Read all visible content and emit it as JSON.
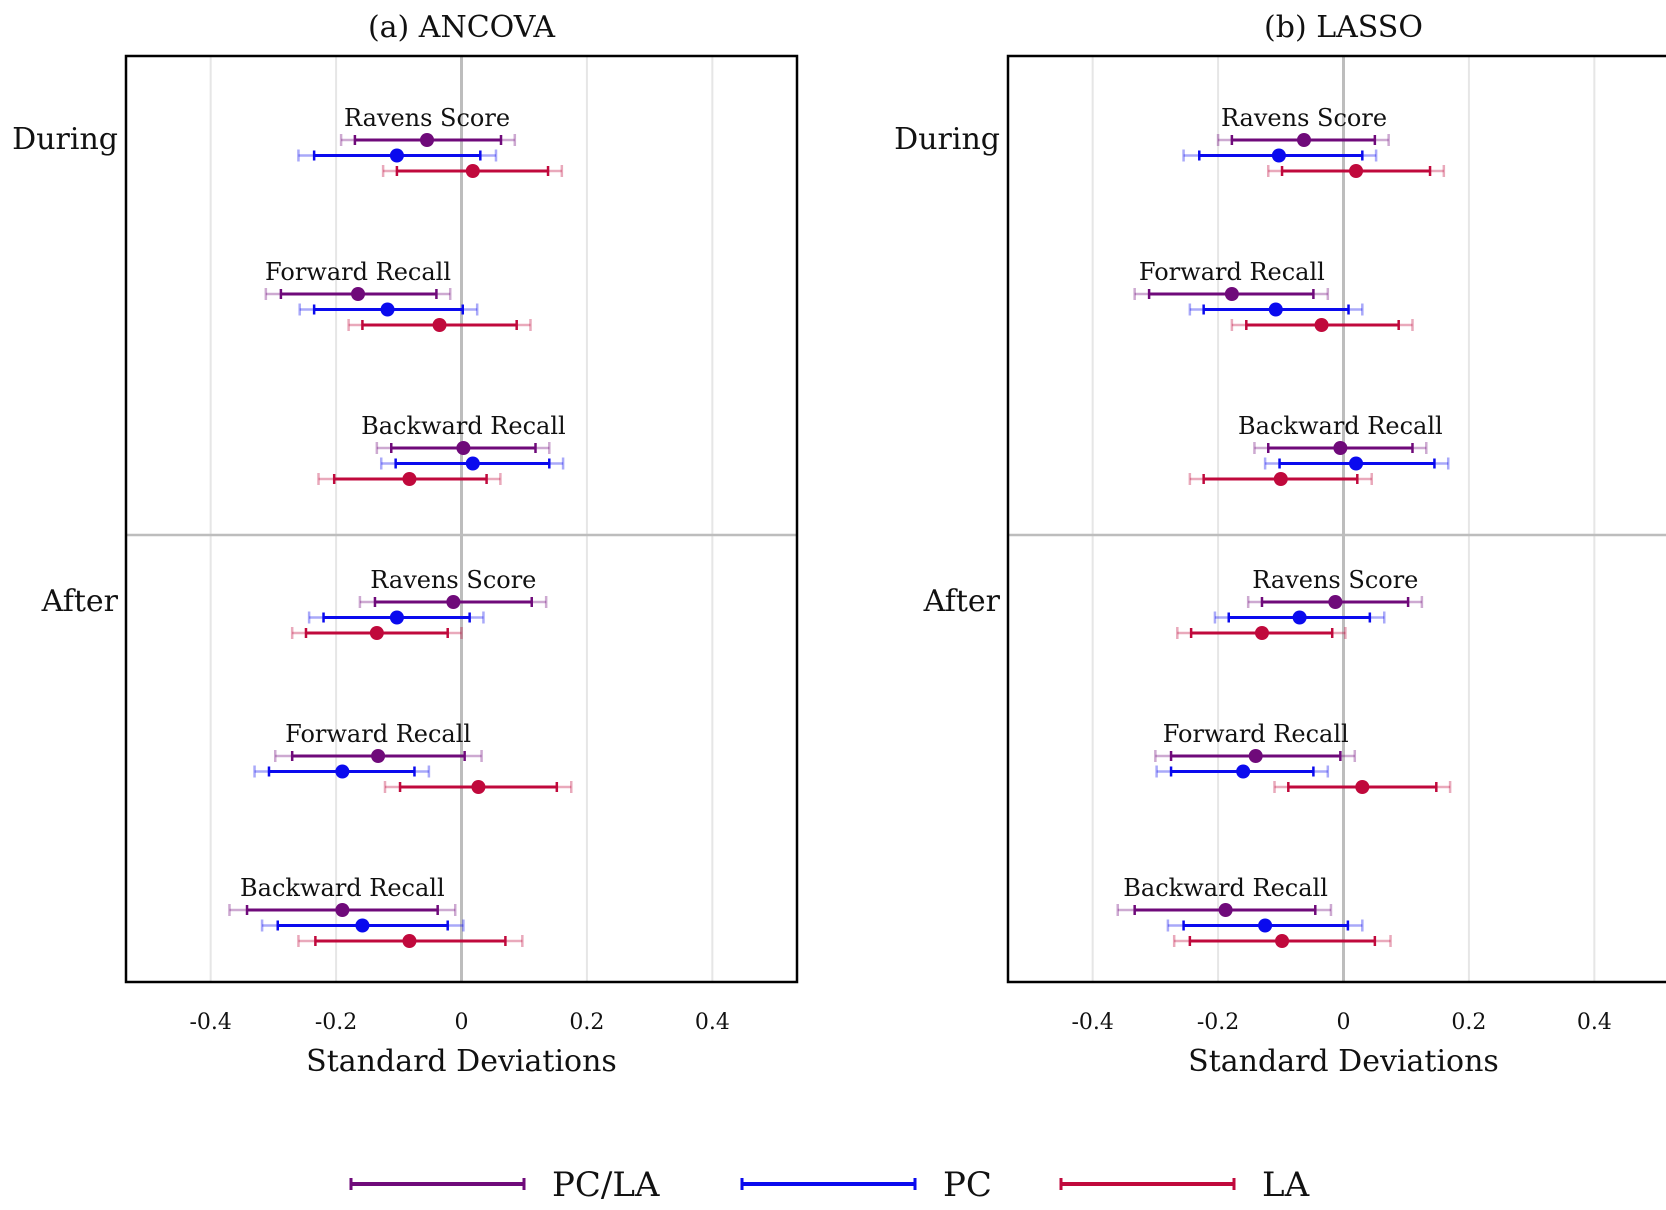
{
  "figure": {
    "legend": [
      {
        "name": "PC/LA",
        "color": "#6f0a7a"
      },
      {
        "name": "PC",
        "color": "#0a0aee"
      },
      {
        "name": "LA",
        "color": "#c0093c"
      }
    ],
    "legend_placement": "bottom-center"
  },
  "chart_data": [
    {
      "type": "coefficient-plot",
      "title": "(a) ANCOVA",
      "xlabel": "Standard Deviations",
      "xlim": [
        -0.535,
        0.535
      ],
      "xticks": [
        -0.4,
        -0.2,
        0,
        0.2,
        0.4
      ],
      "xtick_labels": [
        "-0.4",
        "-0.2",
        "0",
        "0.2",
        "0.4"
      ],
      "grid": true,
      "series_names": [
        "PC/LA",
        "PC",
        "LA"
      ],
      "groups": [
        {
          "period": "During",
          "outcomes": [
            {
              "label": "Ravens Score",
              "estimates": [
                {
                  "series": "PC/LA",
                  "est": -0.055,
                  "ci90": [
                    -0.17,
                    0.063
                  ],
                  "ci95": [
                    -0.192,
                    0.085
                  ]
                },
                {
                  "series": "PC",
                  "est": -0.103,
                  "ci90": [
                    -0.235,
                    0.03
                  ],
                  "ci95": [
                    -0.26,
                    0.055
                  ]
                },
                {
                  "series": "LA",
                  "est": 0.018,
                  "ci90": [
                    -0.103,
                    0.138
                  ],
                  "ci95": [
                    -0.125,
                    0.16
                  ]
                }
              ]
            },
            {
              "label": "Forward Recall",
              "estimates": [
                {
                  "series": "PC/LA",
                  "est": -0.165,
                  "ci90": [
                    -0.288,
                    -0.04
                  ],
                  "ci95": [
                    -0.312,
                    -0.018
                  ]
                },
                {
                  "series": "PC",
                  "est": -0.118,
                  "ci90": [
                    -0.235,
                    0.002
                  ],
                  "ci95": [
                    -0.258,
                    0.025
                  ]
                },
                {
                  "series": "LA",
                  "est": -0.035,
                  "ci90": [
                    -0.158,
                    0.088
                  ],
                  "ci95": [
                    -0.18,
                    0.11
                  ]
                }
              ]
            },
            {
              "label": "Backward Recall",
              "estimates": [
                {
                  "series": "PC/LA",
                  "est": 0.003,
                  "ci90": [
                    -0.112,
                    0.118
                  ],
                  "ci95": [
                    -0.135,
                    0.14
                  ]
                },
                {
                  "series": "PC",
                  "est": 0.018,
                  "ci90": [
                    -0.105,
                    0.14
                  ],
                  "ci95": [
                    -0.128,
                    0.162
                  ]
                },
                {
                  "series": "LA",
                  "est": -0.083,
                  "ci90": [
                    -0.203,
                    0.04
                  ],
                  "ci95": [
                    -0.228,
                    0.062
                  ]
                }
              ]
            }
          ]
        },
        {
          "period": "After",
          "outcomes": [
            {
              "label": "Ravens Score",
              "estimates": [
                {
                  "series": "PC/LA",
                  "est": -0.013,
                  "ci90": [
                    -0.138,
                    0.112
                  ],
                  "ci95": [
                    -0.162,
                    0.135
                  ]
                },
                {
                  "series": "PC",
                  "est": -0.103,
                  "ci90": [
                    -0.22,
                    0.013
                  ],
                  "ci95": [
                    -0.243,
                    0.035
                  ]
                },
                {
                  "series": "LA",
                  "est": -0.135,
                  "ci90": [
                    -0.248,
                    -0.022
                  ],
                  "ci95": [
                    -0.27,
                    0
                  ]
                }
              ]
            },
            {
              "label": "Forward Recall",
              "estimates": [
                {
                  "series": "PC/LA",
                  "est": -0.133,
                  "ci90": [
                    -0.27,
                    0.005
                  ],
                  "ci95": [
                    -0.297,
                    0.032
                  ]
                },
                {
                  "series": "PC",
                  "est": -0.19,
                  "ci90": [
                    -0.307,
                    -0.075
                  ],
                  "ci95": [
                    -0.33,
                    -0.052
                  ]
                },
                {
                  "series": "LA",
                  "est": 0.027,
                  "ci90": [
                    -0.098,
                    0.152
                  ],
                  "ci95": [
                    -0.122,
                    0.175
                  ]
                }
              ]
            },
            {
              "label": "Backward Recall",
              "estimates": [
                {
                  "series": "PC/LA",
                  "est": -0.19,
                  "ci90": [
                    -0.342,
                    -0.038
                  ],
                  "ci95": [
                    -0.37,
                    -0.01
                  ]
                },
                {
                  "series": "PC",
                  "est": -0.158,
                  "ci90": [
                    -0.293,
                    -0.022
                  ],
                  "ci95": [
                    -0.318,
                    0.003
                  ]
                },
                {
                  "series": "LA",
                  "est": -0.083,
                  "ci90": [
                    -0.233,
                    0.07
                  ],
                  "ci95": [
                    -0.26,
                    0.097
                  ]
                }
              ]
            }
          ]
        }
      ]
    },
    {
      "type": "coefficient-plot",
      "title": "(b) LASSO",
      "xlabel": "Standard Deviations",
      "xlim": [
        -0.535,
        0.535
      ],
      "xticks": [
        -0.4,
        -0.2,
        0,
        0.2,
        0.4
      ],
      "xtick_labels": [
        "-0.4",
        "-0.2",
        "0",
        "0.2",
        "0.4"
      ],
      "grid": true,
      "series_names": [
        "PC/LA",
        "PC",
        "LA"
      ],
      "groups": [
        {
          "period": "During",
          "outcomes": [
            {
              "label": "Ravens Score",
              "estimates": [
                {
                  "series": "PC/LA",
                  "est": -0.063,
                  "ci90": [
                    -0.178,
                    0.05
                  ],
                  "ci95": [
                    -0.2,
                    0.072
                  ]
                },
                {
                  "series": "PC",
                  "est": -0.103,
                  "ci90": [
                    -0.23,
                    0.03
                  ],
                  "ci95": [
                    -0.255,
                    0.052
                  ]
                },
                {
                  "series": "LA",
                  "est": 0.02,
                  "ci90": [
                    -0.098,
                    0.138
                  ],
                  "ci95": [
                    -0.12,
                    0.16
                  ]
                }
              ]
            },
            {
              "label": "Forward Recall",
              "estimates": [
                {
                  "series": "PC/LA",
                  "est": -0.178,
                  "ci90": [
                    -0.31,
                    -0.048
                  ],
                  "ci95": [
                    -0.333,
                    -0.025
                  ]
                },
                {
                  "series": "PC",
                  "est": -0.108,
                  "ci90": [
                    -0.223,
                    0.008
                  ],
                  "ci95": [
                    -0.245,
                    0.03
                  ]
                },
                {
                  "series": "LA",
                  "est": -0.035,
                  "ci90": [
                    -0.155,
                    0.088
                  ],
                  "ci95": [
                    -0.178,
                    0.11
                  ]
                }
              ]
            },
            {
              "label": "Backward Recall",
              "estimates": [
                {
                  "series": "PC/LA",
                  "est": -0.005,
                  "ci90": [
                    -0.12,
                    0.11
                  ],
                  "ci95": [
                    -0.142,
                    0.132
                  ]
                },
                {
                  "series": "PC",
                  "est": 0.02,
                  "ci90": [
                    -0.102,
                    0.145
                  ],
                  "ci95": [
                    -0.125,
                    0.167
                  ]
                },
                {
                  "series": "LA",
                  "est": -0.1,
                  "ci90": [
                    -0.223,
                    0.022
                  ],
                  "ci95": [
                    -0.245,
                    0.045
                  ]
                }
              ]
            }
          ]
        },
        {
          "period": "After",
          "outcomes": [
            {
              "label": "Ravens Score",
              "estimates": [
                {
                  "series": "PC/LA",
                  "est": -0.013,
                  "ci90": [
                    -0.13,
                    0.103
                  ],
                  "ci95": [
                    -0.152,
                    0.125
                  ]
                },
                {
                  "series": "PC",
                  "est": -0.07,
                  "ci90": [
                    -0.183,
                    0.042
                  ],
                  "ci95": [
                    -0.205,
                    0.065
                  ]
                },
                {
                  "series": "LA",
                  "est": -0.13,
                  "ci90": [
                    -0.243,
                    -0.018
                  ],
                  "ci95": [
                    -0.265,
                    0.003
                  ]
                }
              ]
            },
            {
              "label": "Forward Recall",
              "estimates": [
                {
                  "series": "PC/LA",
                  "est": -0.14,
                  "ci90": [
                    -0.275,
                    -0.005
                  ],
                  "ci95": [
                    -0.3,
                    0.018
                  ]
                },
                {
                  "series": "PC",
                  "est": -0.16,
                  "ci90": [
                    -0.275,
                    -0.048
                  ],
                  "ci95": [
                    -0.298,
                    -0.025
                  ]
                },
                {
                  "series": "LA",
                  "est": 0.03,
                  "ci90": [
                    -0.088,
                    0.148
                  ],
                  "ci95": [
                    -0.11,
                    0.17
                  ]
                }
              ]
            },
            {
              "label": "Backward Recall",
              "estimates": [
                {
                  "series": "PC/LA",
                  "est": -0.188,
                  "ci90": [
                    -0.333,
                    -0.045
                  ],
                  "ci95": [
                    -0.36,
                    -0.02
                  ]
                },
                {
                  "series": "PC",
                  "est": -0.125,
                  "ci90": [
                    -0.255,
                    0.007
                  ],
                  "ci95": [
                    -0.28,
                    0.03
                  ]
                },
                {
                  "series": "LA",
                  "est": -0.098,
                  "ci90": [
                    -0.245,
                    0.05
                  ],
                  "ci95": [
                    -0.27,
                    0.075
                  ]
                }
              ]
            }
          ]
        }
      ]
    }
  ]
}
